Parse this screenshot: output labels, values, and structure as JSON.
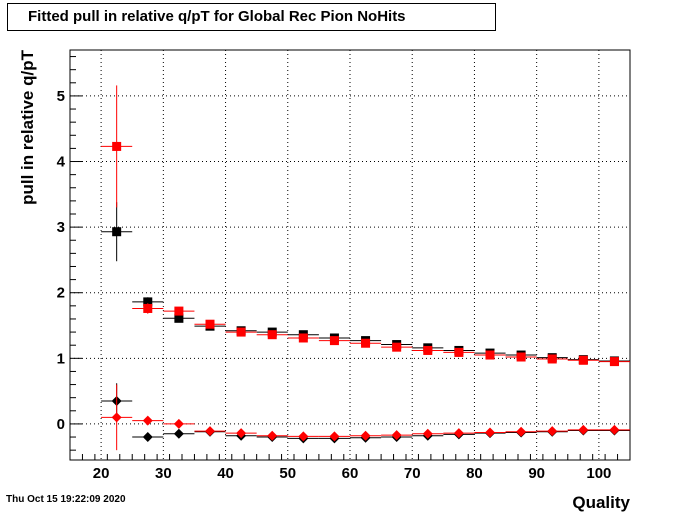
{
  "chart_data": {
    "type": "scatter",
    "title": "Fitted pull in relative q/pT for Global Rec Pion NoHits",
    "xlabel": "Quality",
    "ylabel": "pull in relative q/pT",
    "xlim": [
      15,
      105
    ],
    "ylim": [
      -0.55,
      5.7
    ],
    "x_ticks": [
      20,
      30,
      40,
      50,
      60,
      70,
      80,
      90,
      100
    ],
    "y_ticks": [
      0,
      1,
      2,
      3,
      4,
      5
    ],
    "grid": true,
    "bin_half_width": 2.5,
    "series": [
      {
        "marker": "square",
        "color": "#000000",
        "points": [
          {
            "x": 22.5,
            "y": 2.93,
            "yerr": 0.45
          },
          {
            "x": 27.5,
            "y": 1.86,
            "yerr": 0.07
          },
          {
            "x": 32.5,
            "y": 1.61,
            "yerr": 0.04
          },
          {
            "x": 37.5,
            "y": 1.49,
            "yerr": 0.03
          },
          {
            "x": 42.5,
            "y": 1.42,
            "yerr": 0.02
          },
          {
            "x": 47.5,
            "y": 1.4,
            "yerr": 0.02
          },
          {
            "x": 52.5,
            "y": 1.36,
            "yerr": 0.02
          },
          {
            "x": 57.5,
            "y": 1.31,
            "yerr": 0.02
          },
          {
            "x": 62.5,
            "y": 1.27,
            "yerr": 0.02
          },
          {
            "x": 67.5,
            "y": 1.21,
            "yerr": 0.02
          },
          {
            "x": 72.5,
            "y": 1.16,
            "yerr": 0.02
          },
          {
            "x": 77.5,
            "y": 1.12,
            "yerr": 0.02
          },
          {
            "x": 82.5,
            "y": 1.08,
            "yerr": 0.02
          },
          {
            "x": 87.5,
            "y": 1.05,
            "yerr": 0.02
          },
          {
            "x": 92.5,
            "y": 1.01,
            "yerr": 0.02
          },
          {
            "x": 97.5,
            "y": 0.98,
            "yerr": 0.02
          },
          {
            "x": 102.5,
            "y": 0.96,
            "yerr": 0.02
          }
        ]
      },
      {
        "marker": "square",
        "color": "#ff0000",
        "points": [
          {
            "x": 22.5,
            "y": 4.23,
            "yerr": 0.93
          },
          {
            "x": 27.5,
            "y": 1.76,
            "yerr": 0.08
          },
          {
            "x": 32.5,
            "y": 1.72,
            "yerr": 0.04
          },
          {
            "x": 37.5,
            "y": 1.52,
            "yerr": 0.03
          },
          {
            "x": 42.5,
            "y": 1.4,
            "yerr": 0.02
          },
          {
            "x": 47.5,
            "y": 1.36,
            "yerr": 0.02
          },
          {
            "x": 52.5,
            "y": 1.31,
            "yerr": 0.02
          },
          {
            "x": 57.5,
            "y": 1.27,
            "yerr": 0.02
          },
          {
            "x": 62.5,
            "y": 1.23,
            "yerr": 0.02
          },
          {
            "x": 67.5,
            "y": 1.17,
            "yerr": 0.02
          },
          {
            "x": 72.5,
            "y": 1.12,
            "yerr": 0.02
          },
          {
            "x": 77.5,
            "y": 1.09,
            "yerr": 0.02
          },
          {
            "x": 82.5,
            "y": 1.05,
            "yerr": 0.02
          },
          {
            "x": 87.5,
            "y": 1.02,
            "yerr": 0.02
          },
          {
            "x": 92.5,
            "y": 0.99,
            "yerr": 0.02
          },
          {
            "x": 97.5,
            "y": 0.97,
            "yerr": 0.02
          },
          {
            "x": 102.5,
            "y": 0.95,
            "yerr": 0.02
          }
        ]
      },
      {
        "marker": "diamond",
        "color": "#000000",
        "points": [
          {
            "x": 22.5,
            "y": 0.35,
            "yerr": 0.27
          },
          {
            "x": 27.5,
            "y": -0.2,
            "yerr": 0.05
          },
          {
            "x": 32.5,
            "y": -0.15,
            "yerr": 0.03
          },
          {
            "x": 37.5,
            "y": -0.12,
            "yerr": 0.02
          },
          {
            "x": 42.5,
            "y": -0.18,
            "yerr": 0.02
          },
          {
            "x": 47.5,
            "y": -0.2,
            "yerr": 0.02
          },
          {
            "x": 52.5,
            "y": -0.22,
            "yerr": 0.02
          },
          {
            "x": 57.5,
            "y": -0.22,
            "yerr": 0.02
          },
          {
            "x": 62.5,
            "y": -0.21,
            "yerr": 0.02
          },
          {
            "x": 67.5,
            "y": -0.2,
            "yerr": 0.02
          },
          {
            "x": 72.5,
            "y": -0.18,
            "yerr": 0.02
          },
          {
            "x": 77.5,
            "y": -0.16,
            "yerr": 0.02
          },
          {
            "x": 82.5,
            "y": -0.14,
            "yerr": 0.02
          },
          {
            "x": 87.5,
            "y": -0.13,
            "yerr": 0.02
          },
          {
            "x": 92.5,
            "y": -0.12,
            "yerr": 0.02
          },
          {
            "x": 97.5,
            "y": -0.1,
            "yerr": 0.02
          },
          {
            "x": 102.5,
            "y": -0.1,
            "yerr": 0.02
          }
        ]
      },
      {
        "marker": "diamond",
        "color": "#ff0000",
        "points": [
          {
            "x": 22.5,
            "y": 0.1,
            "yerr": 0.5
          },
          {
            "x": 27.5,
            "y": 0.05,
            "yerr": 0.04
          },
          {
            "x": 32.5,
            "y": 0.0,
            "yerr": 0.03
          },
          {
            "x": 37.5,
            "y": -0.11,
            "yerr": 0.02
          },
          {
            "x": 42.5,
            "y": -0.14,
            "yerr": 0.02
          },
          {
            "x": 47.5,
            "y": -0.18,
            "yerr": 0.02
          },
          {
            "x": 52.5,
            "y": -0.19,
            "yerr": 0.02
          },
          {
            "x": 57.5,
            "y": -0.19,
            "yerr": 0.02
          },
          {
            "x": 62.5,
            "y": -0.18,
            "yerr": 0.02
          },
          {
            "x": 67.5,
            "y": -0.17,
            "yerr": 0.02
          },
          {
            "x": 72.5,
            "y": -0.15,
            "yerr": 0.02
          },
          {
            "x": 77.5,
            "y": -0.14,
            "yerr": 0.02
          },
          {
            "x": 82.5,
            "y": -0.13,
            "yerr": 0.02
          },
          {
            "x": 87.5,
            "y": -0.12,
            "yerr": 0.02
          },
          {
            "x": 92.5,
            "y": -0.11,
            "yerr": 0.02
          },
          {
            "x": 97.5,
            "y": -0.09,
            "yerr": 0.02
          },
          {
            "x": 102.5,
            "y": -0.09,
            "yerr": 0.02
          }
        ]
      }
    ]
  },
  "timestamp": "Thu Oct 15 19:22:09 2020"
}
